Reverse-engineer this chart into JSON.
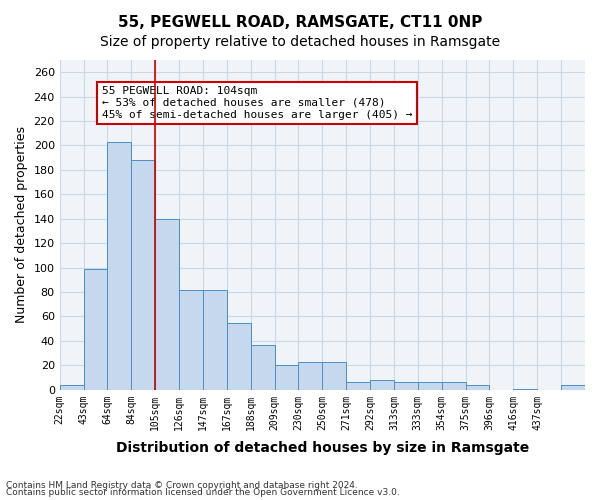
{
  "title": "55, PEGWELL ROAD, RAMSGATE, CT11 0NP",
  "subtitle": "Size of property relative to detached houses in Ramsgate",
  "xlabel": "Distribution of detached houses by size in Ramsgate",
  "ylabel": "Number of detached properties",
  "bar_values": [
    4,
    99,
    203,
    188,
    140,
    82,
    82,
    55,
    37,
    20,
    23,
    23,
    6,
    8,
    6,
    6,
    6,
    4,
    0,
    1,
    0,
    4
  ],
  "bar_labels": [
    "22sqm",
    "43sqm",
    "64sqm",
    "84sqm",
    "105sqm",
    "126sqm",
    "147sqm",
    "167sqm",
    "188sqm",
    "209sqm",
    "230sqm",
    "250sqm",
    "271sqm",
    "292sqm",
    "313sqm",
    "333sqm",
    "354sqm",
    "375sqm",
    "396sqm",
    "416sqm",
    "437sqm",
    ""
  ],
  "bar_color": "#c5d8ed",
  "bar_edge_color": "#4a90c4",
  "grid_color": "#c8d8e8",
  "background_color": "#f0f4f8",
  "red_line_x": 4,
  "annotation_text": "55 PEGWELL ROAD: 104sqm\n← 53% of detached houses are smaller (478)\n45% of semi-detached houses are larger (405) →",
  "annotation_box_color": "#ffffff",
  "annotation_box_edge": "#cc0000",
  "ylim": [
    0,
    270
  ],
  "yticks": [
    0,
    20,
    40,
    60,
    80,
    100,
    120,
    140,
    160,
    180,
    200,
    220,
    240,
    260
  ],
  "footer1": "Contains HM Land Registry data © Crown copyright and database right 2024.",
  "footer2": "Contains public sector information licensed under the Open Government Licence v3.0.",
  "title_fontsize": 11,
  "subtitle_fontsize": 10,
  "tick_fontsize": 8,
  "ylabel_fontsize": 9,
  "xlabel_fontsize": 10
}
